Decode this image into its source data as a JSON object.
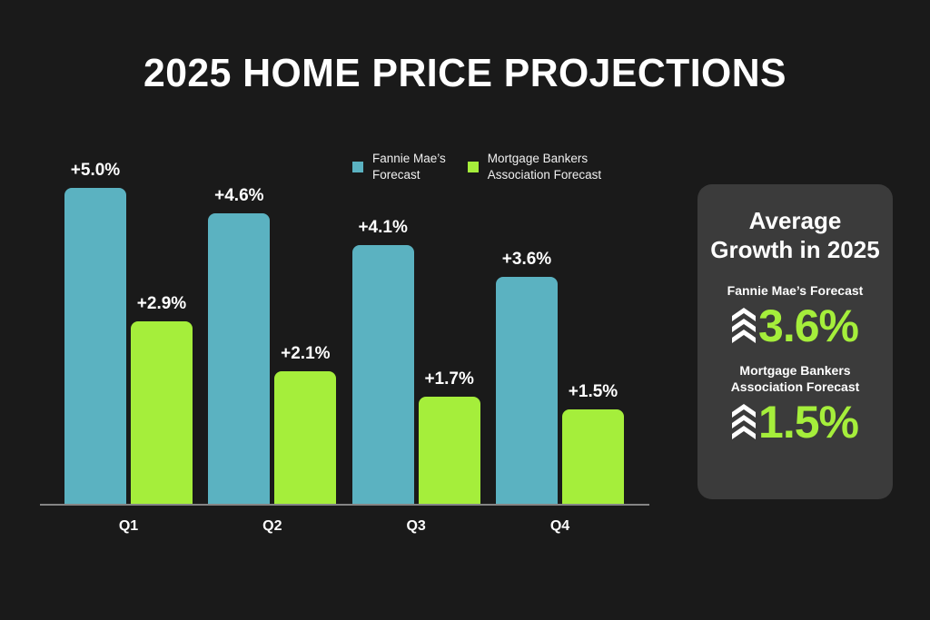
{
  "page": {
    "background": "#1a1a1a",
    "title": "2025 HOME PRICE PROJECTIONS"
  },
  "chart_data": {
    "type": "bar",
    "title": "2025 HOME PRICE PROJECTIONS",
    "categories": [
      "Q1",
      "Q2",
      "Q3",
      "Q4"
    ],
    "series": [
      {
        "name": "Fannie Mae’s Forecast",
        "color": "#5bb2c1",
        "values": [
          5.0,
          4.6,
          4.1,
          3.6
        ],
        "labels": [
          "+5.0%",
          "+4.6%",
          "+4.1%",
          "+3.6%"
        ]
      },
      {
        "name": "Mortgage Bankers Association Forecast",
        "color": "#a5ee3b",
        "values": [
          2.9,
          2.1,
          1.7,
          1.5
        ],
        "labels": [
          "+2.9%",
          "+2.1%",
          "+1.7%",
          "+1.5%"
        ]
      }
    ],
    "ylim": [
      0,
      5.2
    ],
    "grid": false,
    "legend_position": "top",
    "axis_color": "#858585"
  },
  "legend": {
    "items": [
      {
        "line1": "Fannie Mae’s",
        "line2": "Forecast",
        "color": "#5bb2c1"
      },
      {
        "line1": "Mortgage Bankers",
        "line2": "Association Forecast",
        "color": "#a5ee3b"
      }
    ]
  },
  "summary_panel": {
    "background": "#3b3b3b",
    "value_color": "#a5ee3b",
    "title_line1": "Average",
    "title_line2": "Growth in 2025",
    "items": [
      {
        "label_line1": "Fannie Mae’s Forecast",
        "label_line2": "",
        "value": "3.6%",
        "icon": "triple-chevron-up"
      },
      {
        "label_line1": "Mortgage Bankers",
        "label_line2": "Association Forecast",
        "value": "1.5%",
        "icon": "triple-chevron-up"
      }
    ]
  }
}
